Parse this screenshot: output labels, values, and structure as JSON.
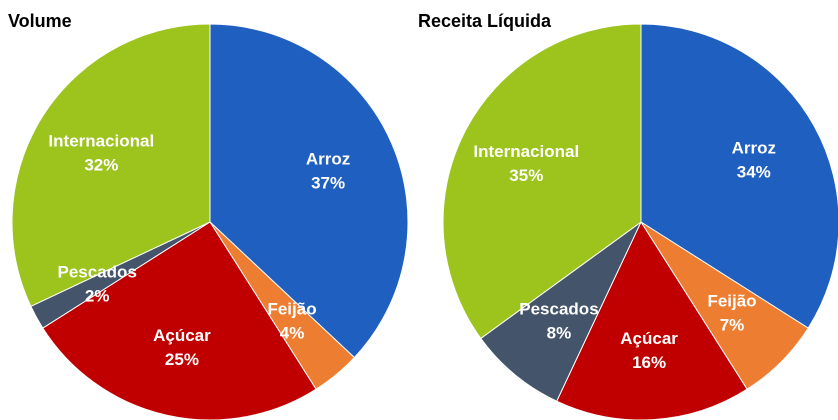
{
  "chart_data": [
    {
      "type": "pie",
      "title": "Volume",
      "categories": [
        "Arroz",
        "Feijão",
        "Açúcar",
        "Pescados",
        "Internacional"
      ],
      "values": [
        37,
        4,
        25,
        2,
        32
      ],
      "value_labels": [
        "37%",
        "4%",
        "25%",
        "2%",
        "32%"
      ],
      "colors": [
        "#1f5fbf",
        "#ed7d31",
        "#c00000",
        "#44546a",
        "#9dc31d"
      ]
    },
    {
      "type": "pie",
      "title": "Receita Líquida",
      "categories": [
        "Arroz",
        "Feijão",
        "Açúcar",
        "Pescados",
        "Internacional"
      ],
      "values": [
        34,
        7,
        16,
        8,
        35
      ],
      "value_labels": [
        "34%",
        "7%",
        "16%",
        "8%",
        "35%"
      ],
      "colors": [
        "#1f5fbf",
        "#ed7d31",
        "#c00000",
        "#44546a",
        "#9dc31d"
      ]
    }
  ]
}
